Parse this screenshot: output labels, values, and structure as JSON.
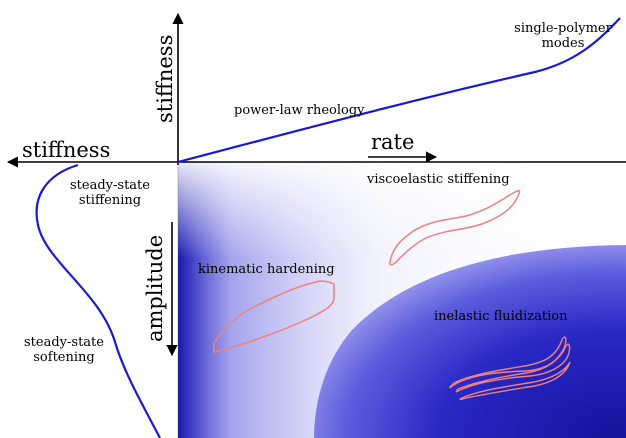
{
  "diagram": {
    "axes": {
      "stiffness_up": "stiffness",
      "stiffness_left": "stiffness",
      "rate": "rate",
      "amplitude": "amplitude"
    },
    "regions": {
      "single_polymer_line1": "single-polymer",
      "single_polymer_line2": "modes",
      "power_law": "power-law rheology",
      "viscoelastic": "viscoelastic stiffening",
      "steady_stiff_line1": "steady-state",
      "steady_stiff_line2": "stiffening",
      "kinematic": "kinematic hardening",
      "inelastic": "inelastic fluidization",
      "steady_soft_line1": "steady-state",
      "steady_soft_line2": "softening"
    },
    "colors": {
      "curve": "#1a1ad0",
      "loop": "#f08080",
      "blob": "#1a1ab8",
      "axis": "#000000"
    }
  }
}
